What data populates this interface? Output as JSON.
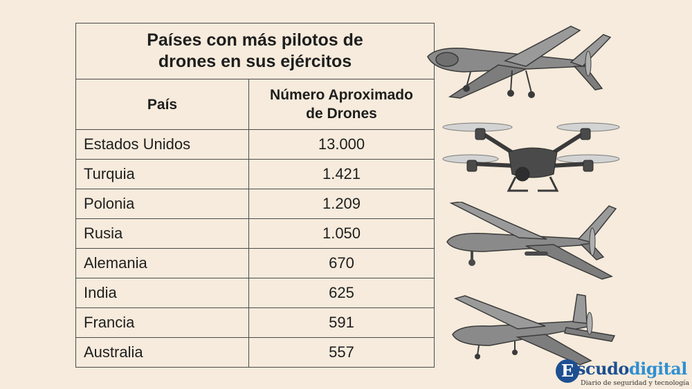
{
  "table": {
    "title_line1": "Países con más pilotos de",
    "title_line2": "drones en sus ejércitos",
    "headers": {
      "country": "País",
      "count_line1": "Número Aproximado",
      "count_line2": "de Drones"
    },
    "rows": [
      {
        "country": "Estados Unidos",
        "value": "13.000"
      },
      {
        "country": "Turquia",
        "value": "1.421"
      },
      {
        "country": "Polonia",
        "value": "1.209"
      },
      {
        "country": "Rusia",
        "value": "1.050"
      },
      {
        "country": "Alemania",
        "value": "670"
      },
      {
        "country": "India",
        "value": "625"
      },
      {
        "country": "Francia",
        "value": "591"
      },
      {
        "country": "Australia",
        "value": "557"
      }
    ]
  },
  "logo": {
    "mark": "E",
    "brand_part1": "scudo",
    "brand_part2": "digital",
    "tagline": "Diario de seguridad y tecnología",
    "colors": {
      "primary": "#1d4f91",
      "secondary": "#2f8fd2"
    }
  },
  "illustrations": [
    "fixed-wing-drone-icon",
    "quadcopter-drone-icon",
    "fixed-wing-drone-icon",
    "fixed-wing-drone-icon"
  ],
  "colors": {
    "background": "#f6ebdc",
    "border": "#4a4a4a",
    "drone_body": "#8a8a8a"
  }
}
